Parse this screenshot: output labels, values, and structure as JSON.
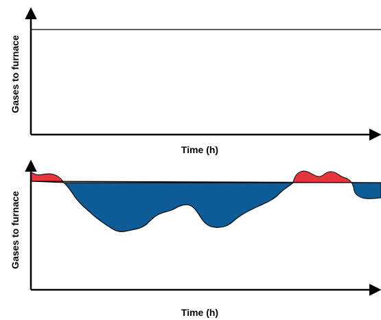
{
  "top_panel": {
    "y_axis_label": "Gases to furnace",
    "x_axis_label": "Time (h)"
  },
  "bottom_panel": {
    "y_axis_label": "Gases to furnace",
    "x_axis_label": "Time (h)"
  },
  "colors": {
    "axis": "#000000",
    "surplus": "#e8343c",
    "deficit": "#0d5c96"
  }
}
